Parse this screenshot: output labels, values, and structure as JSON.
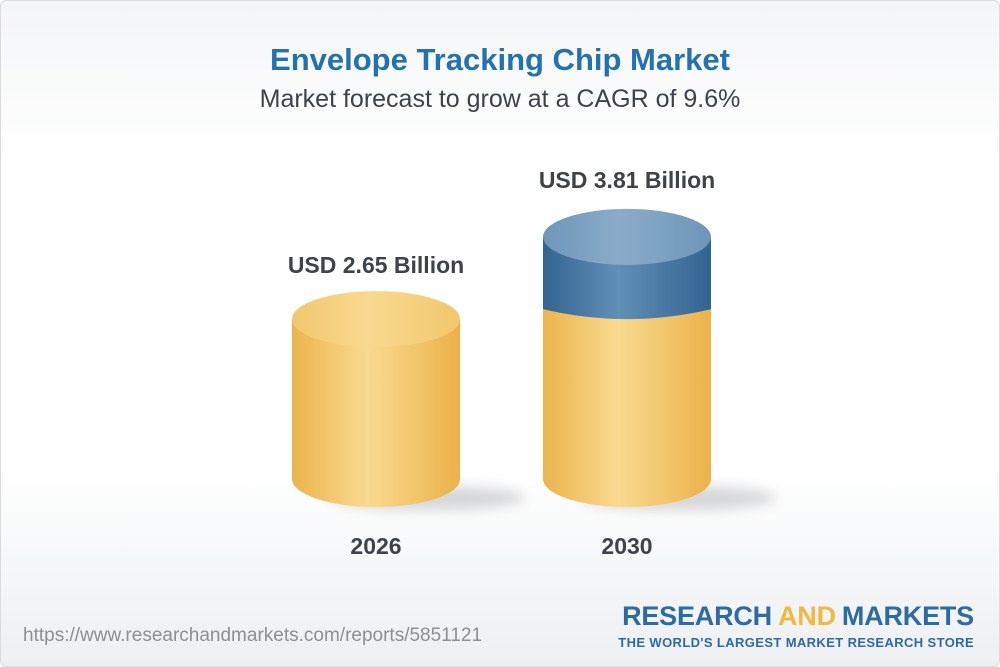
{
  "page": {
    "title": "Envelope Tracking Chip Market",
    "subtitle": "Market forecast to grow at a CAGR of 9.6%"
  },
  "theme": {
    "title_blue": "#2272B2",
    "text_dark": "#3F4347",
    "url_gray": "#8C8F93",
    "logo_blue": "#2D6BA3",
    "logo_gold": "#F0B942",
    "border_gray": "#D9DBDD",
    "background_top": "#F4F5F6",
    "background_bottom": "#EDEFF1"
  },
  "footer": {
    "url": "https://www.researchandmarkets.com/reports/5851121",
    "logo": {
      "part1": "RESEARCH",
      "part2": "AND",
      "part3": "MARKETS",
      "tagline": "THE WORLD'S LARGEST MARKET RESEARCH STORE"
    }
  },
  "chart_data": {
    "type": "bar",
    "subtype": "3d-cylinder-stacked",
    "title": "Envelope Tracking Chip Market",
    "subtitle": "Market forecast to grow at a CAGR of 9.6%",
    "cagr_percent": 9.6,
    "unit": "USD Billion",
    "categories": [
      "2026",
      "2030"
    ],
    "values": [
      2.65,
      3.81
    ],
    "value_labels": [
      "USD 2.65 Billion",
      "USD 3.81 Billion"
    ],
    "base_value": 2.65,
    "growth_value": 1.16,
    "legend": "none",
    "grid": false,
    "bars": [
      {
        "category": "2026",
        "label": "USD 2.65 Billion",
        "segments": [
          {
            "color": "yellow",
            "value": 2.65
          }
        ]
      },
      {
        "category": "2030",
        "label": "USD 3.81 Billion",
        "segments": [
          {
            "color": "yellow",
            "value": 2.65
          },
          {
            "color": "blue",
            "value": 1.16
          }
        ]
      }
    ],
    "colors": {
      "yellow_body": [
        "#ECB44C",
        "#F9DA90",
        "#EBB248"
      ],
      "yellow_top": [
        "#F2C76C",
        "#F9D990",
        "#F2C76C"
      ],
      "blue_body": [
        "#336390",
        "#6090B7",
        "#336390"
      ],
      "blue_top": [
        "#6D96B9",
        "#8BACC9",
        "#6D96B9"
      ],
      "shadow": "#84878A"
    }
  }
}
